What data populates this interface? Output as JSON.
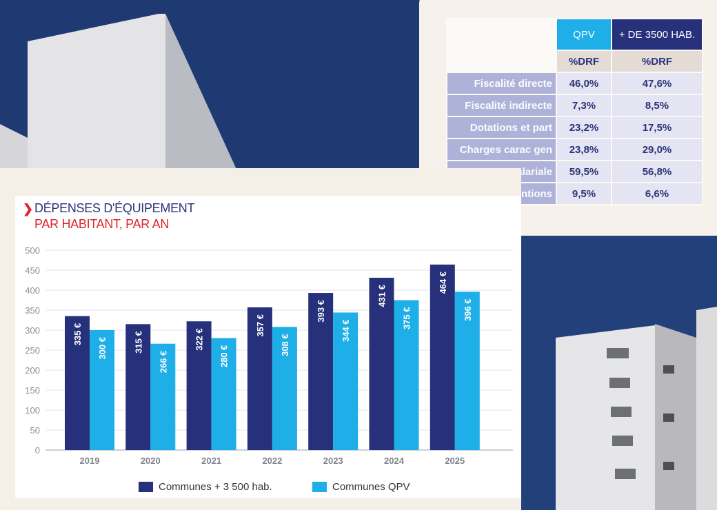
{
  "colors": {
    "navy": "#27307a",
    "cyan": "#1eaee8",
    "sky": "#22407a",
    "red": "#e0262c"
  },
  "table": {
    "headers": [
      "QPV",
      "+ DE 3500 HAB."
    ],
    "subheaders": [
      "%DRF",
      "%DRF"
    ],
    "rows": [
      {
        "label": "Fiscalité directe",
        "qpv": "46,0%",
        "com": "47,6%"
      },
      {
        "label": "Fiscalité indirecte",
        "qpv": "7,3%",
        "com": "8,5%"
      },
      {
        "label": "Dotations et part",
        "qpv": "23,2%",
        "com": "17,5%"
      },
      {
        "label": "Charges carac gen",
        "qpv": "23,8%",
        "com": "29,0%"
      },
      {
        "label": "Masse salariale",
        "qpv": "59,5%",
        "com": "56,8%"
      },
      {
        "label": "Subventions",
        "qpv": "9,5%",
        "com": "6,6%"
      }
    ]
  },
  "chart_data": {
    "type": "bar",
    "title": "DÉPENSES D'ÉQUIPEMENT",
    "subtitle": "PAR HABITANT, PAR AN",
    "categories": [
      "2019",
      "2020",
      "2021",
      "2022",
      "2023",
      "2024",
      "2025"
    ],
    "series": [
      {
        "name": "Communes + 3 500 hab.",
        "color": "#27307a",
        "values": [
          335,
          315,
          322,
          357,
          393,
          431,
          464
        ],
        "labels": [
          "335 €",
          "315 €",
          "322 €",
          "357 €",
          "393 €",
          "431 €",
          "464 €"
        ]
      },
      {
        "name": "Communes QPV",
        "color": "#1eaee8",
        "values": [
          300,
          266,
          280,
          308,
          344,
          375,
          396
        ],
        "labels": [
          "300 €",
          "266 €",
          "280 €",
          "308 €",
          "344 €",
          "375 €",
          "396 €"
        ]
      }
    ],
    "ylim": [
      0,
      500
    ],
    "yticks": [
      "0",
      "50",
      "100",
      "150",
      "200",
      "250",
      "300",
      "350",
      "400",
      "450",
      "500"
    ],
    "grid": true,
    "legend_position": "bottom"
  }
}
